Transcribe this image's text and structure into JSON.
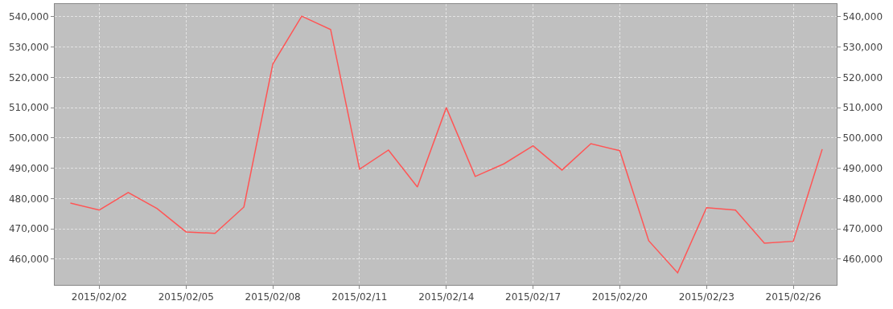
{
  "chart_data": {
    "type": "line",
    "x": [
      "2015-02-01",
      "2015-02-02",
      "2015-02-03",
      "2015-02-04",
      "2015-02-05",
      "2015-02-06",
      "2015-02-07",
      "2015-02-08",
      "2015-02-09",
      "2015-02-10",
      "2015-02-11",
      "2015-02-12",
      "2015-02-13",
      "2015-02-14",
      "2015-02-15",
      "2015-02-16",
      "2015-02-17",
      "2015-02-18",
      "2015-02-19",
      "2015-02-20",
      "2015-02-21",
      "2015-02-22",
      "2015-02-23",
      "2015-02-24",
      "2015-02-25",
      "2015-02-26",
      "2015-02-27"
    ],
    "series": [
      {
        "color": "#ff5555",
        "values": [
          478500,
          476200,
          482000,
          476700,
          469000,
          468500,
          477200,
          524400,
          540200,
          535800,
          489700,
          496000,
          483800,
          510000,
          487300,
          491500,
          497400,
          489400,
          498100,
          495800,
          466100,
          455500,
          477000,
          476200,
          465300,
          465900,
          496300
        ]
      }
    ],
    "xlim": [
      "2015-01-31T11:00",
      "2015-02-27T12:00"
    ],
    "xticks": [
      {
        "value": "2015-02-02",
        "label": "2015/02/02"
      },
      {
        "value": "2015-02-05",
        "label": "2015/02/05"
      },
      {
        "value": "2015-02-08",
        "label": "2015/02/08"
      },
      {
        "value": "2015-02-11",
        "label": "2015/02/11"
      },
      {
        "value": "2015-02-14",
        "label": "2015/02/14"
      },
      {
        "value": "2015-02-17",
        "label": "2015/02/17"
      },
      {
        "value": "2015-02-20",
        "label": "2015/02/20"
      },
      {
        "value": "2015-02-23",
        "label": "2015/02/23"
      },
      {
        "value": "2015-02-26",
        "label": "2015/02/26"
      }
    ],
    "ylim": [
      451500,
      544200
    ],
    "yticks": [
      {
        "value": 460000,
        "label": "460,000"
      },
      {
        "value": 470000,
        "label": "470,000"
      },
      {
        "value": 480000,
        "label": "480,000"
      },
      {
        "value": 490000,
        "label": "490,000"
      },
      {
        "value": 500000,
        "label": "500,000"
      },
      {
        "value": 510000,
        "label": "510,000"
      },
      {
        "value": 520000,
        "label": "520,000"
      },
      {
        "value": 530000,
        "label": "530,000"
      },
      {
        "value": 540000,
        "label": "540,000"
      }
    ],
    "y2lim": [
      451500,
      544200
    ],
    "y2ticks": [
      {
        "value": 460000,
        "label": "460,000"
      },
      {
        "value": 470000,
        "label": "470,000"
      },
      {
        "value": 480000,
        "label": "480,000"
      },
      {
        "value": 490000,
        "label": "490,000"
      },
      {
        "value": 500000,
        "label": "500,000"
      },
      {
        "value": 510000,
        "label": "510,000"
      },
      {
        "value": 520000,
        "label": "520,000"
      },
      {
        "value": 530000,
        "label": "530,000"
      },
      {
        "value": 540000,
        "label": "540,000"
      }
    ],
    "grid": true,
    "marker": "none",
    "line_style": "solid"
  }
}
